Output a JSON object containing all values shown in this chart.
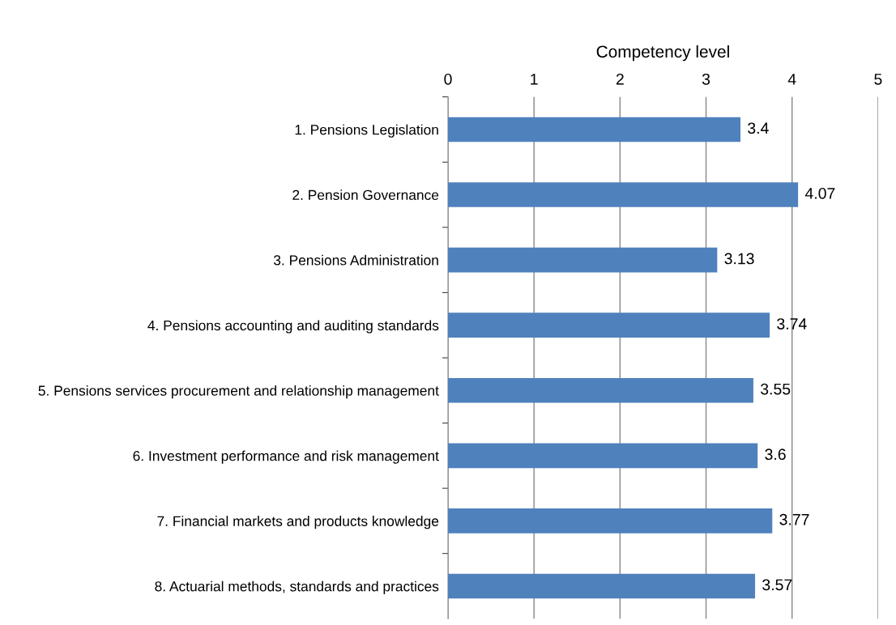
{
  "chart_data": {
    "type": "bar",
    "orientation": "horizontal",
    "xlabel": "Competency level",
    "categories": [
      "1. Pensions Legislation",
      "2. Pension Governance",
      "3. Pensions Administration",
      "4. Pensions accounting and auditing standards",
      "5. Pensions services procurement and relationship management",
      "6. Investment performance and risk management",
      "7. Financial markets and products knowledge",
      "8. Actuarial methods, standards and practices"
    ],
    "values": [
      3.4,
      4.07,
      3.13,
      3.74,
      3.55,
      3.6,
      3.77,
      3.57
    ],
    "color": "#4f81bd",
    "xlim": [
      0,
      5
    ],
    "xticks": [
      0,
      1,
      2,
      3,
      4,
      5
    ],
    "grid": "x",
    "data_labels": true
  }
}
